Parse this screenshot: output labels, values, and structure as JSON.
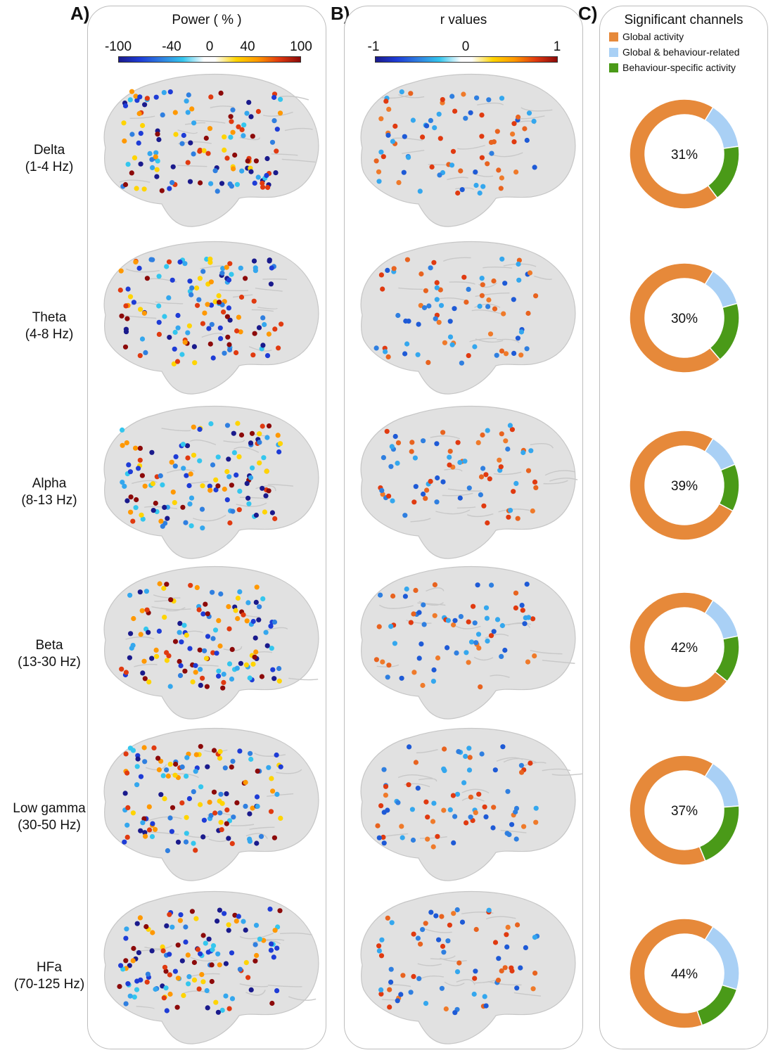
{
  "panels": {
    "a_letter": "A)",
    "b_letter": "B)",
    "c_letter": "C)"
  },
  "panel_a": {
    "title": "Power ( % )",
    "ticks": [
      "-100",
      "-40",
      "0",
      "40",
      "100"
    ]
  },
  "panel_b": {
    "title": "r values",
    "ticks": [
      "-1",
      "0",
      "1"
    ]
  },
  "panel_c": {
    "title": "Significant channels",
    "legend": [
      {
        "label": "Global activity",
        "color": "#e6893a"
      },
      {
        "label": "Global & behaviour-related",
        "color": "#a9d0f5"
      },
      {
        "label": "Behaviour-specific activity",
        "color": "#4a9a18"
      }
    ]
  },
  "bands": [
    {
      "name": "Delta",
      "range": "(1-4 Hz)",
      "pct_label": "31%"
    },
    {
      "name": "Theta",
      "range": "(4-8 Hz)",
      "pct_label": "30%"
    },
    {
      "name": "Alpha",
      "range": "(8-13 Hz)",
      "pct_label": "39%"
    },
    {
      "name": "Beta",
      "range": "(13-30 Hz)",
      "pct_label": "42%"
    },
    {
      "name": "Low gamma",
      "range": "(30-50 Hz)",
      "pct_label": "37%"
    },
    {
      "name": "HFa",
      "range": "(70-125 Hz)",
      "pct_label": "44%"
    }
  ],
  "chart_data": [
    {
      "type": "pie",
      "title": "Delta (1-4 Hz)",
      "categories": [
        "Global activity",
        "Global & behaviour-related",
        "Behaviour-specific activity"
      ],
      "values": [
        69,
        14,
        17
      ],
      "center_label": "31%"
    },
    {
      "type": "pie",
      "title": "Theta (4-8 Hz)",
      "categories": [
        "Global activity",
        "Global & behaviour-related",
        "Behaviour-specific activity"
      ],
      "values": [
        70,
        12,
        18
      ],
      "center_label": "30%"
    },
    {
      "type": "pie",
      "title": "Alpha (8-13 Hz)",
      "categories": [
        "Global activity",
        "Global & behaviour-related",
        "Behaviour-specific activity"
      ],
      "values": [
        76,
        10,
        14
      ],
      "center_label": "39%"
    },
    {
      "type": "pie",
      "title": "Beta (13-30 Hz)",
      "categories": [
        "Global activity",
        "Global & behaviour-related",
        "Behaviour-specific activity"
      ],
      "values": [
        73,
        13,
        14
      ],
      "center_label": "42%"
    },
    {
      "type": "pie",
      "title": "Low gamma (30-50 Hz)",
      "categories": [
        "Global activity",
        "Global & behaviour-related",
        "Behaviour-specific activity"
      ],
      "values": [
        65,
        15,
        20
      ],
      "center_label": "37%"
    },
    {
      "type": "pie",
      "title": "HFa (70-125 Hz)",
      "categories": [
        "Global activity",
        "Global & behaviour-related",
        "Behaviour-specific activity"
      ],
      "values": [
        64,
        21,
        15
      ],
      "center_label": "44%"
    }
  ]
}
